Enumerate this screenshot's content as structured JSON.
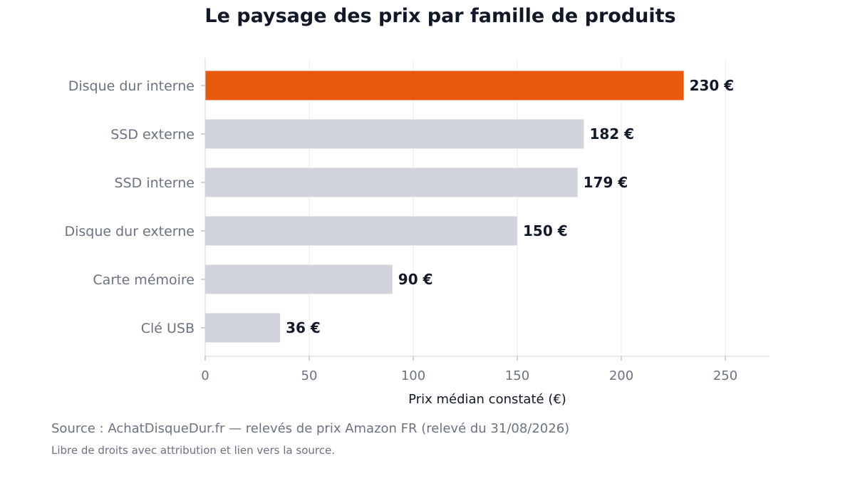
{
  "chart_data": {
    "type": "bar",
    "orientation": "horizontal",
    "title": "Le paysage des prix par famille de produits",
    "categories": [
      "Disque dur interne",
      "SSD externe",
      "SSD interne",
      "Disque dur externe",
      "Carte mémoire",
      "Clé USB"
    ],
    "values": [
      230,
      182,
      179,
      150,
      90,
      36
    ],
    "value_labels": [
      "230 €",
      "182 €",
      "179 €",
      "150 €",
      "90 €",
      "36 €"
    ],
    "highlight_index": 0,
    "colors": {
      "highlight": "#E8590C",
      "default": "#D1D5DB",
      "grid": "#EEEEEE",
      "axis": "#D1D5DB"
    },
    "xlabel": "Prix médian constaté (€)",
    "ylabel": "",
    "xticks": [
      0,
      50,
      100,
      150,
      200,
      250
    ],
    "xlim": [
      0,
      270
    ],
    "grid": true,
    "legend": "none"
  },
  "footer": {
    "source": "Source : AchatDisqueDur.fr — relevés de prix Amazon FR (relevé du 31/08/2026)",
    "license": "Libre de droits avec attribution et lien vers la source."
  }
}
